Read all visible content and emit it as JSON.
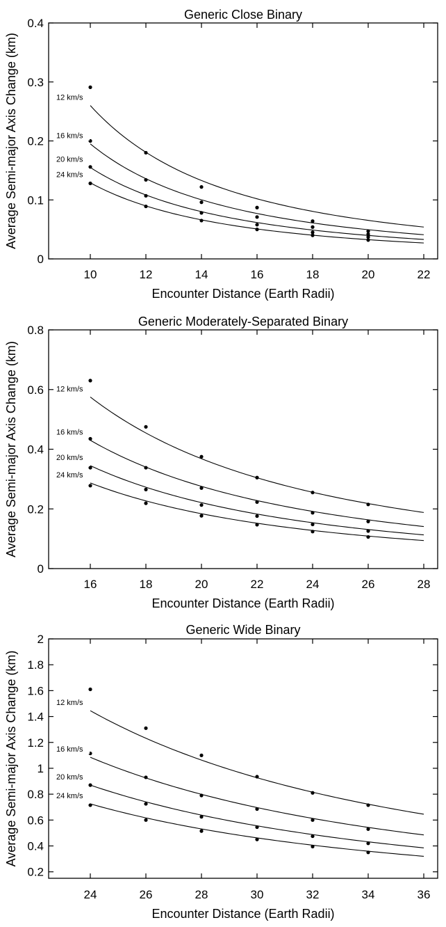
{
  "chart_data": [
    {
      "type": "scatter",
      "title": "Generic Close Binary",
      "xlabel": "Encounter Distance (Earth Radii)",
      "ylabel": "Average Semi-major Axis Change (km)",
      "xlim": [
        8.5,
        22.5
      ],
      "ylim": [
        0,
        0.4
      ],
      "xticks": [
        10,
        12,
        14,
        16,
        18,
        20,
        22
      ],
      "yticks": [
        0,
        0.1,
        0.2,
        0.3,
        0.4
      ],
      "ytick_labels": [
        "0",
        "0.1",
        "0.2",
        "0.3",
        "0.4"
      ],
      "grid": false,
      "legend": "none",
      "series": [
        {
          "name": "12 km/s",
          "points": {
            "x": [
              10,
              12,
              14,
              16,
              18,
              20
            ],
            "y": [
              0.291,
              0.18,
              0.122,
              0.087,
              0.064,
              0.047
            ]
          },
          "curve": {
            "x": [
              10,
              22
            ],
            "y": [
              0.26,
              0.054
            ]
          }
        },
        {
          "name": "16 km/s",
          "points": {
            "x": [
              10,
              12,
              14,
              16,
              18,
              20
            ],
            "y": [
              0.2,
              0.134,
              0.096,
              0.071,
              0.054,
              0.042
            ]
          },
          "curve": {
            "x": [
              10,
              22
            ],
            "y": [
              0.195,
              0.041
            ]
          }
        },
        {
          "name": "20 km/s",
          "points": {
            "x": [
              10,
              12,
              14,
              16,
              18,
              20
            ],
            "y": [
              0.156,
              0.107,
              0.078,
              0.058,
              0.045,
              0.037
            ]
          },
          "curve": {
            "x": [
              10,
              22
            ],
            "y": [
              0.155,
              0.033
            ]
          }
        },
        {
          "name": "24 km/s",
          "points": {
            "x": [
              10,
              12,
              14,
              16,
              18,
              20
            ],
            "y": [
              0.128,
              0.089,
              0.065,
              0.05,
              0.04,
              0.032
            ]
          },
          "curve": {
            "x": [
              10,
              22
            ],
            "y": [
              0.129,
              0.027
            ]
          }
        }
      ]
    },
    {
      "type": "scatter",
      "title": "Generic Moderately-Separated Binary",
      "xlabel": "Encounter Distance (Earth Radii)",
      "ylabel": "Average Semi-major Axis Change (km)",
      "xlim": [
        14.5,
        28.5
      ],
      "ylim": [
        0,
        0.8
      ],
      "xticks": [
        16,
        18,
        20,
        22,
        24,
        26,
        28
      ],
      "yticks": [
        0,
        0.2,
        0.4,
        0.6,
        0.8
      ],
      "ytick_labels": [
        "0",
        "0.2",
        "0.4",
        "0.6",
        "0.8"
      ],
      "grid": false,
      "legend": "none",
      "series": [
        {
          "name": "12 km/s",
          "points": {
            "x": [
              16,
              18,
              20,
              22,
              24,
              26
            ],
            "y": [
              0.63,
              0.475,
              0.375,
              0.305,
              0.255,
              0.215
            ]
          },
          "curve": {
            "x": [
              16,
              28
            ],
            "y": [
              0.575,
              0.188
            ]
          }
        },
        {
          "name": "16 km/s",
          "points": {
            "x": [
              16,
              18,
              20,
              22,
              24,
              26
            ],
            "y": [
              0.435,
              0.338,
              0.27,
              0.223,
              0.187,
              0.158
            ]
          },
          "curve": {
            "x": [
              16,
              28
            ],
            "y": [
              0.43,
              0.141
            ]
          }
        },
        {
          "name": "20 km/s",
          "points": {
            "x": [
              16,
              18,
              20,
              22,
              24,
              26
            ],
            "y": [
              0.338,
              0.265,
              0.213,
              0.176,
              0.148,
              0.126
            ]
          },
          "curve": {
            "x": [
              16,
              28
            ],
            "y": [
              0.345,
              0.113
            ]
          }
        },
        {
          "name": "24 km/s",
          "points": {
            "x": [
              16,
              18,
              20,
              22,
              24,
              26
            ],
            "y": [
              0.278,
              0.219,
              0.177,
              0.147,
              0.124,
              0.106
            ]
          },
          "curve": {
            "x": [
              16,
              28
            ],
            "y": [
              0.287,
              0.094
            ]
          }
        }
      ]
    },
    {
      "type": "scatter",
      "title": "Generic Wide Binary",
      "xlabel": "Encounter Distance (Earth Radii)",
      "ylabel": "Average Semi-major Axis Change (km)",
      "xlim": [
        22.5,
        36.5
      ],
      "ylim": [
        0.15,
        2
      ],
      "xticks": [
        24,
        26,
        28,
        30,
        32,
        34,
        36
      ],
      "yticks": [
        0.2,
        0.4,
        0.6,
        0.8,
        1,
        1.2,
        1.4,
        1.6,
        1.8,
        2
      ],
      "ytick_labels": [
        "0.2",
        "0.4",
        "0.6",
        "0.8",
        "1",
        "1.2",
        "1.4",
        "1.6",
        "1.8",
        "2"
      ],
      "grid": false,
      "legend": "none",
      "series": [
        {
          "name": "12 km/s",
          "points": {
            "x": [
              24,
              26,
              28,
              30,
              32,
              34
            ],
            "y": [
              1.61,
              1.31,
              1.1,
              0.935,
              0.81,
              0.715
            ]
          },
          "curve": {
            "x": [
              24,
              36
            ],
            "y": [
              1.445,
              0.645
            ]
          }
        },
        {
          "name": "16 km/s",
          "points": {
            "x": [
              24,
              26,
              28,
              30,
              32,
              34
            ],
            "y": [
              1.115,
              0.93,
              0.79,
              0.685,
              0.6,
              0.53
            ]
          },
          "curve": {
            "x": [
              24,
              36
            ],
            "y": [
              1.085,
              0.485
            ]
          }
        },
        {
          "name": "20 km/s",
          "points": {
            "x": [
              24,
              26,
              28,
              30,
              32,
              34
            ],
            "y": [
              0.87,
              0.725,
              0.625,
              0.545,
              0.475,
              0.42
            ]
          },
          "curve": {
            "x": [
              24,
              36
            ],
            "y": [
              0.87,
              0.385
            ]
          }
        },
        {
          "name": "24 km/s",
          "points": {
            "x": [
              24,
              26,
              28,
              30,
              32,
              34
            ],
            "y": [
              0.715,
              0.6,
              0.515,
              0.45,
              0.395,
              0.35
            ]
          },
          "curve": {
            "x": [
              24,
              36
            ],
            "y": [
              0.725,
              0.32
            ]
          }
        }
      ]
    }
  ]
}
